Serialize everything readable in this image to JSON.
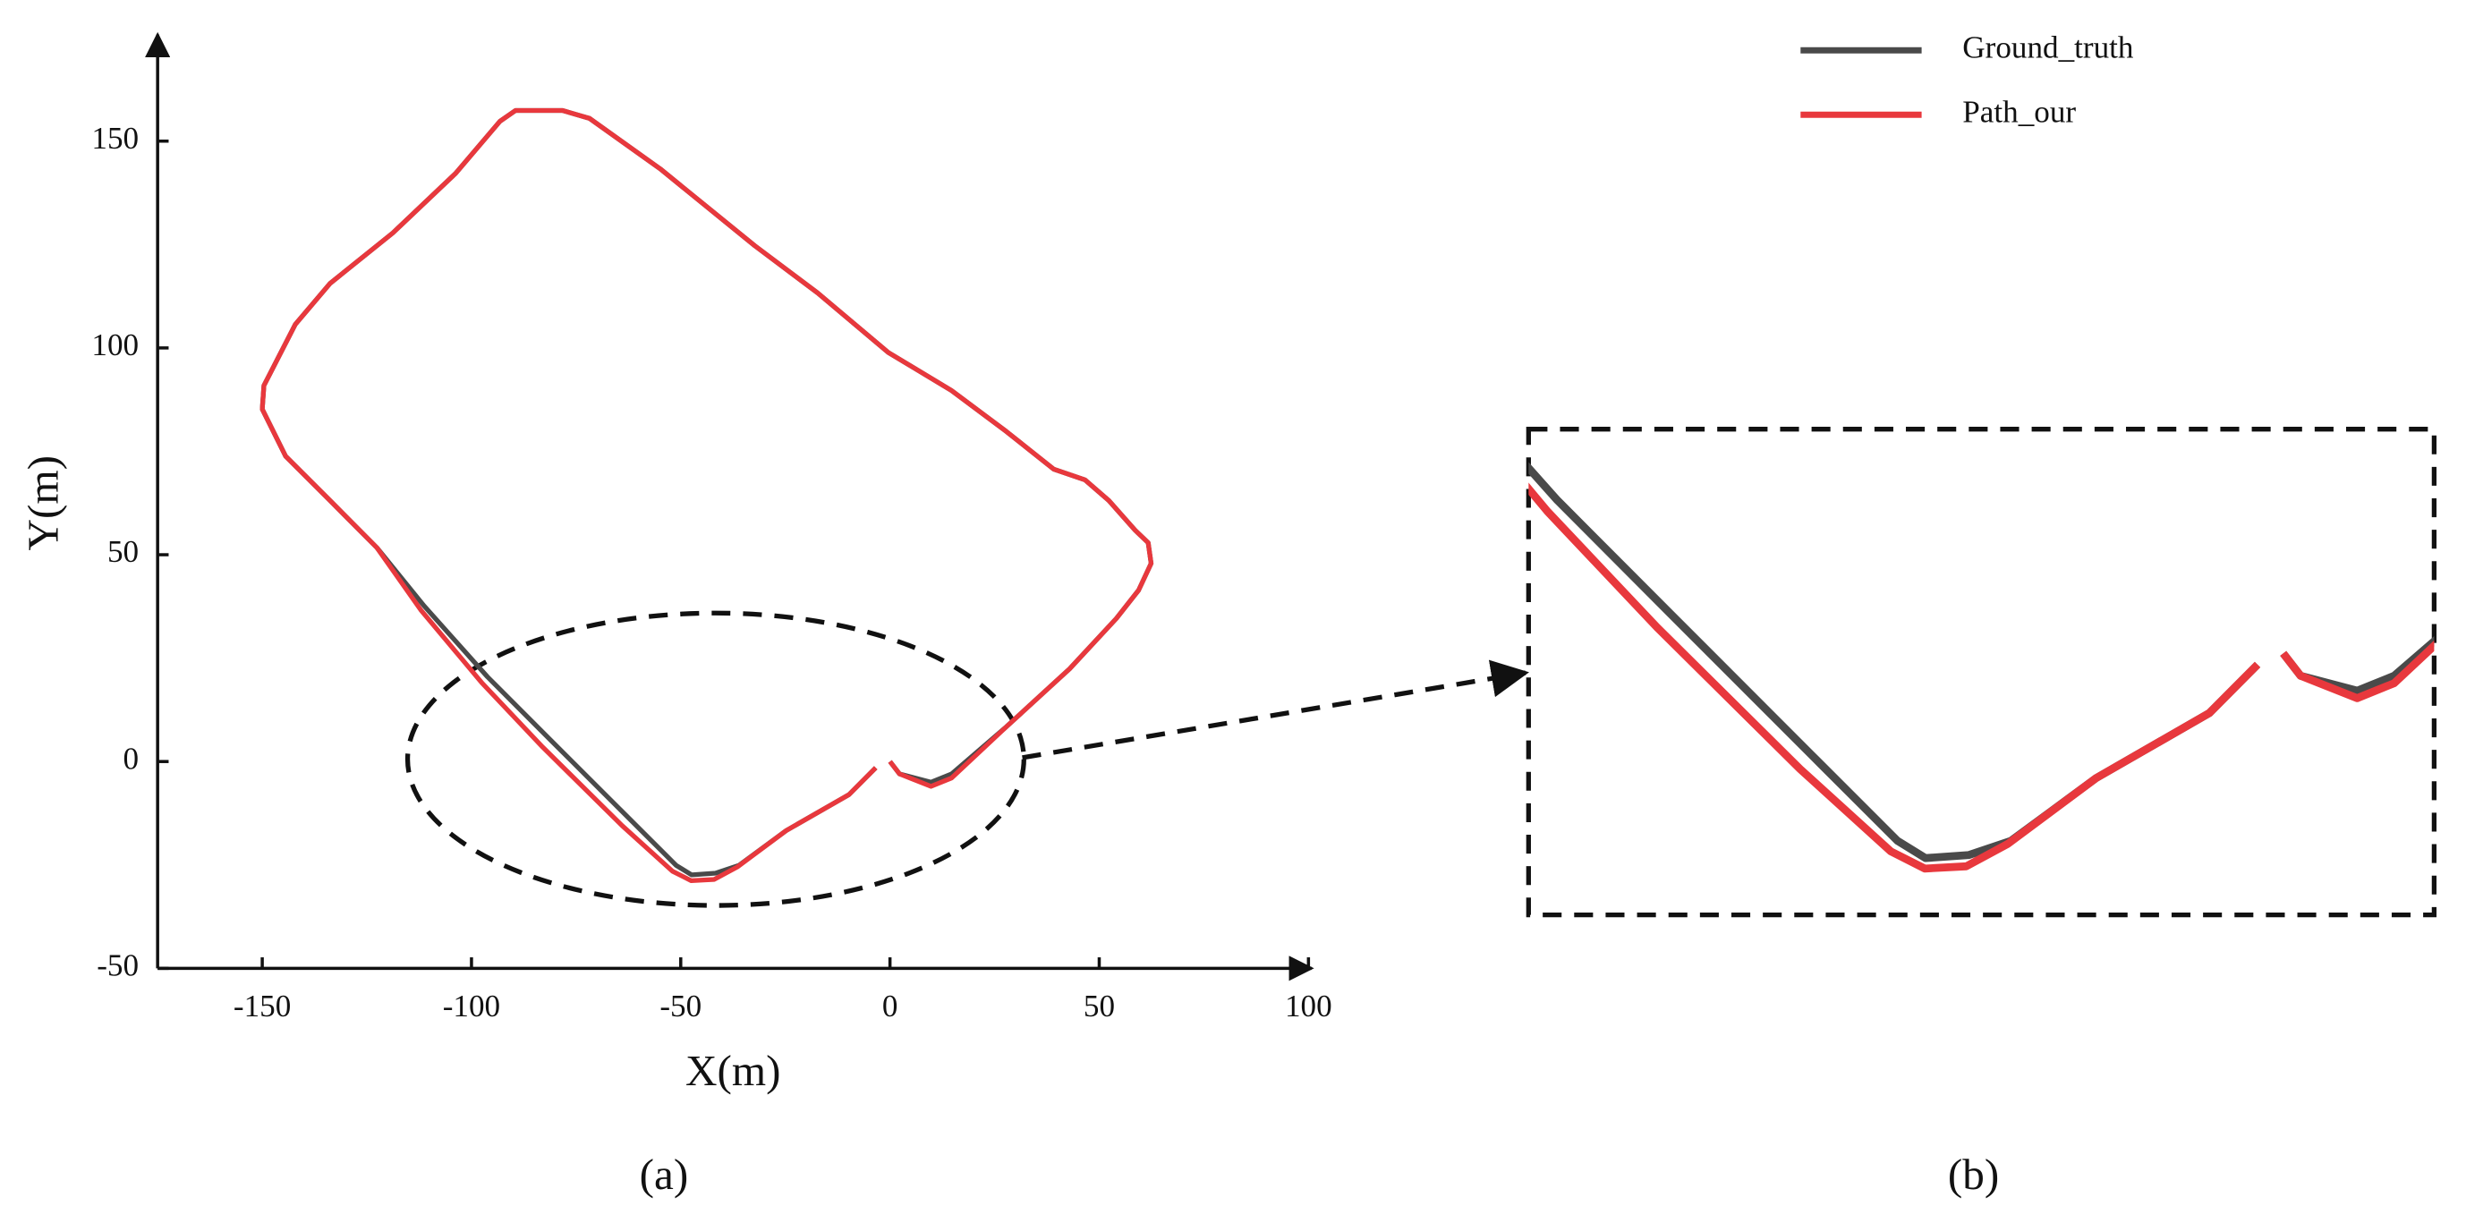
{
  "chart_data": {
    "type": "line",
    "xlabel": "X(m)",
    "ylabel": "Y(m)",
    "xlim": [
      -175,
      100
    ],
    "ylim": [
      -50,
      175
    ],
    "xticks": [
      -150,
      -100,
      -50,
      0,
      50,
      100
    ],
    "yticks": [
      -50,
      0,
      50,
      100,
      150
    ],
    "grid": false,
    "legend": "upper right",
    "inset": {
      "xlim": [
        -100,
        20
      ],
      "ylim": [
        -35,
        30
      ]
    },
    "panel_labels": [
      "(a)",
      "(b)"
    ],
    "series": [
      {
        "name": "Ground_truth",
        "color": "#4a4a4a",
        "x": [
          0,
          2.3,
          9.8,
          14.7,
          27.8,
          42.9,
          54.1,
          59.4,
          62.4,
          61.7,
          58.6,
          52.3,
          46.6,
          39.1,
          27.8,
          14.7,
          -0.4,
          -17.3,
          -32.3,
          -54.9,
          -71.8,
          -78.2,
          -89.5,
          -93.2,
          -103.8,
          -118.8,
          -133.8,
          -142.1,
          -149.6,
          -150,
          -144.4,
          -133.8,
          -122.6,
          -111.3,
          -96.2,
          -81.2,
          -62.4,
          -51.1,
          -47.4,
          -41.7,
          -36.1,
          -24.8,
          -9.8,
          -3.4
        ],
        "values": [
          0,
          -3,
          -5,
          -3,
          8.4,
          22.4,
          34.6,
          41.4,
          47.9,
          52.9,
          55.9,
          63.1,
          68.1,
          70.7,
          79.8,
          89.7,
          98.9,
          113.3,
          124.7,
          143.3,
          155.5,
          157.4,
          157.4,
          154.8,
          142.2,
          127.8,
          115.6,
          105.7,
          90.9,
          85.2,
          73.8,
          63.1,
          51.7,
          37.6,
          20.5,
          5.3,
          -13.7,
          -25.1,
          -27.4,
          -27,
          -25.1,
          -16.7,
          -8,
          -1.5
        ]
      },
      {
        "name": "Path_our",
        "color": "#e8383d",
        "x": [
          0,
          2.3,
          9.8,
          14.7,
          27.8,
          42.9,
          54.1,
          59.4,
          62.4,
          61.7,
          58.6,
          52.3,
          46.6,
          39.1,
          27.8,
          14.7,
          -0.4,
          -17.3,
          -32.3,
          -54.9,
          -71.8,
          -78.2,
          -89.5,
          -93.2,
          -103.8,
          -118.8,
          -133.8,
          -142.1,
          -149.6,
          -150,
          -144.4,
          -133.8,
          -122.6,
          -112,
          -97.5,
          -83,
          -64,
          -52,
          -47.5,
          -42,
          -36.5,
          -24.8,
          -9.8,
          -3.4
        ],
        "values": [
          0,
          -3,
          -6,
          -4,
          8.4,
          22.4,
          34.6,
          41.4,
          47.9,
          52.9,
          55.9,
          63.1,
          68.1,
          70.7,
          79.8,
          89.7,
          98.9,
          113.3,
          124.7,
          143.3,
          155.5,
          157.4,
          157.4,
          154.8,
          142.2,
          127.8,
          115.6,
          105.7,
          90.9,
          85.2,
          73.8,
          63.1,
          51.7,
          36.5,
          19,
          3.5,
          -15.5,
          -26.5,
          -28.8,
          -28.5,
          -25.5,
          -16.7,
          -8,
          -1.5
        ]
      }
    ]
  }
}
